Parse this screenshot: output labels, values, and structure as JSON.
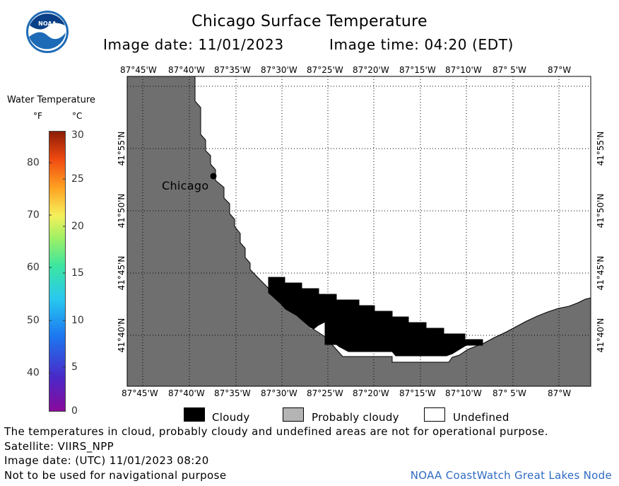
{
  "header": {
    "title": "Chicago Surface Temperature",
    "image_date": "Image date: 11/01/2023",
    "image_time": "Image time: 04:20 (EDT)"
  },
  "colorbar": {
    "title": "Water Temperature",
    "unit_f": "°F",
    "unit_c": "°C",
    "f_ticks": [
      "80",
      "70",
      "60",
      "50",
      "40"
    ],
    "c_ticks": [
      "30",
      "25",
      "20",
      "15",
      "10",
      "5",
      "0"
    ]
  },
  "map": {
    "lon_labels": [
      "87°45'W",
      "87°40'W",
      "87°35'W",
      "87°30'W",
      "87°25'W",
      "87°20'W",
      "87°15'W",
      "87°10'W",
      "87° 5'W",
      "87°W"
    ],
    "lat_labels": [
      "41°55'N",
      "41°50'N",
      "41°45'N",
      "41°40'N"
    ],
    "city_label": "Chicago",
    "colors": {
      "land": "#6f6f6f",
      "cloudy": "#000000",
      "probably_cloudy": "#b4b4b4",
      "undefined": "#ffffff"
    }
  },
  "legend": {
    "cloudy": "Cloudy",
    "probably_cloudy": "Probably cloudy",
    "undefined": "Undefined"
  },
  "footer": {
    "disclaimer": "The temperatures in cloud, probably cloudy and undefined areas are not for operational purpose.",
    "satellite": "Satellite: VIIRS_NPP",
    "utc_date": "Image date: (UTC) 11/01/2023  08:20",
    "navigation": "Not to be used for navigational purpose",
    "credit": "NOAA CoastWatch Great Lakes Node"
  }
}
